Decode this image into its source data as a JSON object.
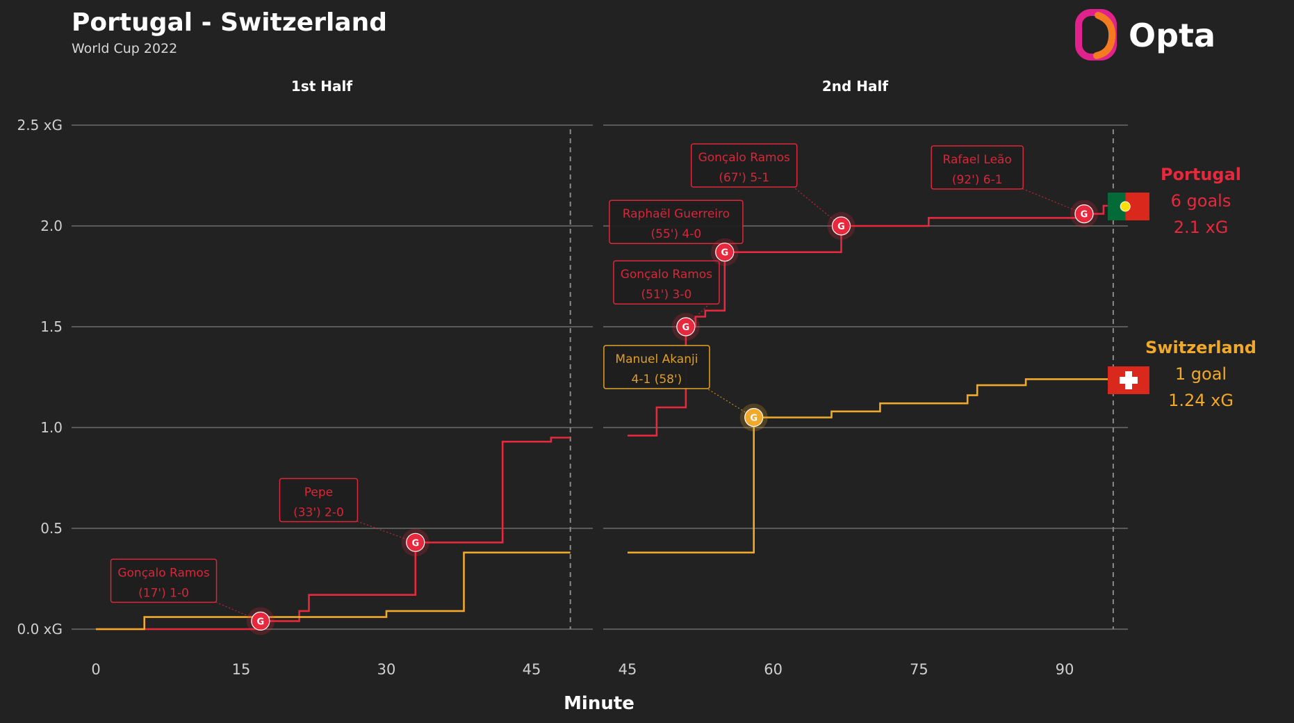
{
  "header": {
    "title": "Portugal - Switzerland",
    "subtitle": "World Cup 2022",
    "brand": "Opta"
  },
  "colors": {
    "background": "#222222",
    "grid": "#5a5a5a",
    "portugal": "#e8283c",
    "switzerland": "#f0a92a",
    "text": "#ffffff",
    "axis_text": "#d0d0d0"
  },
  "chart_data": {
    "type": "line",
    "step": true,
    "xlabel": "Minute",
    "ylabel": "",
    "ylim": [
      0,
      2.5
    ],
    "yticks": [
      {
        "value": 0,
        "label": "0.0 xG"
      },
      {
        "value": 0.5,
        "label": "0.5"
      },
      {
        "value": 1.0,
        "label": "1.0"
      },
      {
        "value": 1.5,
        "label": "1.5"
      },
      {
        "value": 2.0,
        "label": "2.0"
      },
      {
        "value": 2.5,
        "label": "2.5 xG"
      }
    ],
    "grid": true,
    "legend": "right",
    "panels": [
      {
        "label": "1st Half",
        "xlim": [
          0,
          52
        ],
        "xticks": [
          0,
          15,
          30,
          45
        ],
        "end_marker": 49
      },
      {
        "label": "2nd Half",
        "xlim": [
          45,
          98
        ],
        "xticks": [
          45,
          60,
          75,
          90
        ],
        "end_marker": 95
      }
    ],
    "series": [
      {
        "name": "Portugal",
        "team_key": "portugal",
        "legend_lines": [
          "Portugal",
          "6 goals",
          "2.1 xG"
        ],
        "halves": [
          [
            [
              0,
              0
            ],
            [
              17,
              0
            ],
            [
              17,
              0.04
            ],
            [
              21,
              0.04
            ],
            [
              21,
              0.09
            ],
            [
              22,
              0.09
            ],
            [
              22,
              0.17
            ],
            [
              33,
              0.17
            ],
            [
              33,
              0.43
            ],
            [
              42,
              0.43
            ],
            [
              42,
              0.93
            ],
            [
              47,
              0.93
            ],
            [
              47,
              0.95
            ],
            [
              49,
              0.95
            ]
          ],
          [
            [
              45,
              0.96
            ],
            [
              48,
              0.96
            ],
            [
              48,
              1.1
            ],
            [
              51,
              1.1
            ],
            [
              51,
              1.5
            ],
            [
              52,
              1.5
            ],
            [
              52,
              1.55
            ],
            [
              53,
              1.55
            ],
            [
              53,
              1.58
            ],
            [
              55,
              1.58
            ],
            [
              55,
              1.87
            ],
            [
              67,
              1.87
            ],
            [
              67,
              2.0
            ],
            [
              76,
              2.0
            ],
            [
              76,
              2.04
            ],
            [
              92,
              2.04
            ],
            [
              92,
              2.06
            ],
            [
              94,
              2.06
            ],
            [
              94,
              2.1
            ],
            [
              95,
              2.1
            ]
          ]
        ],
        "goals": [
          {
            "half": 0,
            "minute": 17,
            "xg": 0.04,
            "label_lines": [
              "Gonçalo Ramos",
              "(17') 1-0"
            ],
            "badge_minute": 7,
            "badge_xg": 0.24
          },
          {
            "half": 0,
            "minute": 33,
            "xg": 0.43,
            "label_lines": [
              "Pepe",
              "(33') 2-0"
            ],
            "badge_minute": 23,
            "badge_xg": 0.64
          },
          {
            "half": 1,
            "minute": 51,
            "xg": 1.5,
            "label_lines": [
              "Gonçalo Ramos",
              "(51') 3-0"
            ],
            "badge_minute": 49,
            "badge_xg": 1.72
          },
          {
            "half": 1,
            "minute": 55,
            "xg": 1.87,
            "label_lines": [
              "Raphaël Guerreiro",
              "(55') 4-0"
            ],
            "badge_minute": 50,
            "badge_xg": 2.02
          },
          {
            "half": 1,
            "minute": 67,
            "xg": 2.0,
            "label_lines": [
              "Gonçalo Ramos",
              "(67') 5-1"
            ],
            "badge_minute": 57,
            "badge_xg": 2.3
          },
          {
            "half": 1,
            "minute": 92,
            "xg": 2.06,
            "label_lines": [
              "Rafael Leão",
              "(92') 6-1"
            ],
            "badge_minute": 81,
            "badge_xg": 2.29
          }
        ]
      },
      {
        "name": "Switzerland",
        "team_key": "switzerland",
        "legend_lines": [
          "Switzerland",
          "1 goal",
          "1.24 xG"
        ],
        "halves": [
          [
            [
              0,
              0
            ],
            [
              5,
              0
            ],
            [
              5,
              0.06
            ],
            [
              21,
              0.06
            ],
            [
              21,
              0.06
            ],
            [
              30,
              0.06
            ],
            [
              30,
              0.09
            ],
            [
              38,
              0.09
            ],
            [
              38,
              0.38
            ],
            [
              49,
              0.38
            ]
          ],
          [
            [
              45,
              0.38
            ],
            [
              58,
              0.38
            ],
            [
              58,
              1.05
            ],
            [
              66,
              1.05
            ],
            [
              66,
              1.08
            ],
            [
              71,
              1.08
            ],
            [
              71,
              1.12
            ],
            [
              80,
              1.12
            ],
            [
              80,
              1.16
            ],
            [
              81,
              1.16
            ],
            [
              81,
              1.21
            ],
            [
              86,
              1.21
            ],
            [
              86,
              1.24
            ],
            [
              95,
              1.24
            ]
          ]
        ],
        "goals": [
          {
            "half": 1,
            "minute": 58,
            "xg": 1.05,
            "label_lines": [
              "Manuel Akanji",
              "4-1 (58')"
            ],
            "badge_minute": 48,
            "badge_xg": 1.3
          }
        ]
      }
    ]
  }
}
